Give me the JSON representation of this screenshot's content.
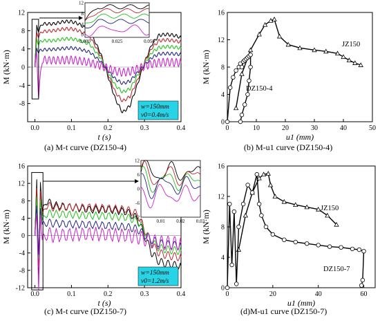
{
  "charts": {
    "a": {
      "caption": "(a) M-t curve (DZ150-4)",
      "xlabel": "t (s)",
      "ylabel": "M (kN·m)",
      "info_line1": "w=150mm",
      "info_line2": "v0=0.4m/s",
      "inset_xlim": [
        0,
        0.05
      ]
    },
    "b": {
      "caption": "(b) M-u1 curve (DZ150-4)",
      "xlabel": "u1 (mm)",
      "ylabel": "M (kN·m)",
      "label_jz": "JZ150",
      "label_dz": "DZ150-4"
    },
    "c": {
      "caption": "(c) M-t curve (DZ150-7)",
      "xlabel": "t (s)",
      "ylabel": "M (kN·m)",
      "info_line1": "w=150mm",
      "info_line2": "v0=1.2m/s",
      "inset_xlim": [
        0,
        0.03
      ]
    },
    "d": {
      "caption": "(d)M-u1 curve (DZ150-7)",
      "xlabel": "u1 (mm)",
      "ylabel": "M (kN·m)",
      "label_jz": "JZ150",
      "label_dz": "DZ150-7"
    }
  },
  "colors": {
    "black": "#000000",
    "red": "#c0262f",
    "green": "#21c21a",
    "blue": "#22227e",
    "pink": "#c2467a",
    "magenta": "#cc22cc",
    "info_box": "#29d3e6"
  },
  "chart_data": [
    {
      "id": "a",
      "type": "line",
      "xlim": [
        -0.02,
        0.4
      ],
      "ylim": [
        -12,
        12
      ],
      "xticks": [
        0.0,
        0.1,
        0.2,
        0.3,
        0.4
      ],
      "xtick_labels": [
        "0.0",
        "0.1",
        "0.2",
        "0.3",
        "0.4"
      ],
      "yticks": [
        -12,
        -8,
        -4,
        0,
        4,
        8,
        12
      ],
      "ytick_labels": [
        "",
        "-8",
        "-4",
        "0",
        "4",
        "8",
        "12"
      ],
      "series": [
        {
          "color": "black",
          "x": [
            0,
            0.005,
            0.01,
            0.02,
            0.05,
            0.08,
            0.1,
            0.12,
            0.15,
            0.18,
            0.2,
            0.22,
            0.24,
            0.26,
            0.28,
            0.3,
            0.32,
            0.34,
            0.36,
            0.38,
            0.4
          ],
          "y": [
            0,
            9,
            8,
            9.5,
            9.5,
            10,
            10,
            9.5,
            8,
            3,
            -2,
            -7,
            -10,
            -8.5,
            -4,
            1,
            5,
            7,
            7.2,
            7,
            6.5
          ]
        },
        {
          "color": "red",
          "x": [
            0,
            0.005,
            0.01,
            0.02,
            0.05,
            0.08,
            0.1,
            0.12,
            0.15,
            0.18,
            0.2,
            0.22,
            0.24,
            0.26,
            0.28,
            0.3,
            0.32,
            0.34,
            0.36,
            0.38,
            0.4
          ],
          "y": [
            0,
            7.5,
            6.8,
            7.8,
            8,
            8.4,
            8.4,
            8,
            6.8,
            2.5,
            -1.5,
            -5.5,
            -7.5,
            -6.5,
            -3,
            1,
            4.2,
            5.8,
            6,
            5.8,
            5.5
          ]
        },
        {
          "color": "green",
          "x": [
            0,
            0.005,
            0.01,
            0.02,
            0.05,
            0.08,
            0.1,
            0.12,
            0.15,
            0.18,
            0.2,
            0.22,
            0.24,
            0.26,
            0.28,
            0.3,
            0.32,
            0.34,
            0.36,
            0.38,
            0.4
          ],
          "y": [
            0,
            6,
            5.2,
            5.8,
            5.8,
            6.2,
            6.2,
            5.9,
            5,
            2,
            -1.2,
            -4,
            -5.5,
            -4.8,
            -2,
            0.8,
            3.2,
            4.3,
            4.5,
            4.4,
            4.2
          ]
        },
        {
          "color": "blue",
          "x": [
            0,
            0.005,
            0.01,
            0.02,
            0.05,
            0.08,
            0.1,
            0.12,
            0.15,
            0.18,
            0.2,
            0.22,
            0.24,
            0.26,
            0.28,
            0.3,
            0.32,
            0.34,
            0.36,
            0.38,
            0.4
          ],
          "y": [
            0,
            4,
            3.4,
            3.8,
            3.9,
            4.1,
            4.2,
            4,
            3.3,
            1.2,
            -0.8,
            -2.6,
            -3.6,
            -3.1,
            -1.3,
            0.5,
            2.1,
            2.9,
            3,
            2.9,
            2.8
          ]
        },
        {
          "color": "magenta",
          "x": [
            0,
            0.005,
            0.01,
            0.02,
            0.05,
            0.08,
            0.1,
            0.12,
            0.15,
            0.18,
            0.2,
            0.22,
            0.24,
            0.26,
            0.28,
            0.3,
            0.32,
            0.34,
            0.36,
            0.38,
            0.4
          ],
          "y": [
            0,
            2.5,
            -6,
            1.6,
            1.5,
            1.5,
            1.6,
            1.4,
            1,
            0.3,
            -0.3,
            -0.9,
            -1.2,
            -1,
            -0.4,
            0.2,
            0.7,
            1,
            1.1,
            1,
            1
          ]
        }
      ]
    },
    {
      "id": "b",
      "type": "line",
      "xlim": [
        0,
        50
      ],
      "ylim": [
        0,
        16
      ],
      "xticks": [
        0,
        10,
        20,
        30,
        40,
        50
      ],
      "xtick_labels": [
        "0",
        "10",
        "20",
        "30",
        "40",
        "50"
      ],
      "yticks": [
        0,
        4,
        8,
        12,
        16
      ],
      "ytick_labels": [
        "0",
        "4",
        "8",
        "12",
        "16"
      ],
      "series": [
        {
          "name": "JZ150",
          "marker": "triangle",
          "x": [
            3,
            5,
            8,
            11,
            13,
            15,
            16.2,
            18,
            21,
            25,
            30,
            34,
            38,
            40,
            42,
            44,
            46
          ],
          "y": [
            2,
            7,
            10.5,
            12.8,
            14.2,
            14.8,
            15,
            12.5,
            11.3,
            10.8,
            10.5,
            10.3,
            10,
            9.5,
            9,
            8.6,
            8.3
          ]
        },
        {
          "name": "DZ150-4",
          "marker": "circle",
          "x": [
            0,
            1,
            2,
            3,
            4,
            4.5,
            5,
            5.5,
            6,
            6.5,
            7,
            7.5,
            8,
            8,
            7.5,
            7,
            6,
            5,
            4.5
          ],
          "y": [
            0,
            5,
            6.5,
            7.5,
            8,
            8.5,
            8,
            8.8,
            9,
            9.2,
            9.4,
            9.6,
            9.8,
            8,
            6,
            4,
            2.5,
            1,
            0
          ]
        }
      ]
    },
    {
      "id": "c",
      "type": "line",
      "xlim": [
        -0.02,
        0.4
      ],
      "ylim": [
        -12,
        16
      ],
      "xticks": [
        0.0,
        0.1,
        0.2,
        0.3,
        0.4
      ],
      "xtick_labels": [
        "0.0",
        "0.1",
        "0.2",
        "0.3",
        "0.4"
      ],
      "yticks": [
        -12,
        -8,
        -4,
        0,
        4,
        8,
        12,
        16
      ],
      "ytick_labels": [
        "-12",
        "-8",
        "-4",
        "0",
        "4",
        "8",
        "12",
        "16"
      ],
      "series": [
        {
          "color": "black",
          "x": [
            0,
            0.005,
            0.01,
            0.015,
            0.02,
            0.03,
            0.05,
            0.1,
            0.15,
            0.2,
            0.25,
            0.28,
            0.3,
            0.32,
            0.34,
            0.36,
            0.38,
            0.4
          ],
          "y": [
            0,
            12,
            -9,
            13,
            5,
            8,
            7,
            6.5,
            6,
            6,
            5.5,
            4,
            0,
            -4,
            -6,
            -6.5,
            -6.8,
            -7
          ]
        },
        {
          "color": "red",
          "x": [
            0,
            0.005,
            0.01,
            0.015,
            0.02,
            0.03,
            0.05,
            0.1,
            0.15,
            0.2,
            0.25,
            0.28,
            0.3,
            0.32,
            0.34,
            0.36,
            0.38,
            0.4
          ],
          "y": [
            0,
            10,
            -7,
            11,
            4,
            7,
            6.5,
            6.5,
            6.5,
            6.3,
            6,
            5,
            1.5,
            -2,
            -4,
            -4.5,
            -4.8,
            -5
          ]
        },
        {
          "color": "green",
          "x": [
            0,
            0.005,
            0.01,
            0.015,
            0.02,
            0.03,
            0.05,
            0.1,
            0.15,
            0.2,
            0.25,
            0.28,
            0.3,
            0.32,
            0.34,
            0.36,
            0.38,
            0.4
          ],
          "y": [
            0,
            8,
            -5,
            9,
            3,
            5,
            5,
            4.8,
            4.6,
            4.5,
            4.2,
            3.5,
            1,
            -1.5,
            -2.8,
            -3.2,
            -3.4,
            -3.5
          ]
        },
        {
          "color": "blue",
          "x": [
            0,
            0.005,
            0.01,
            0.015,
            0.02,
            0.03,
            0.05,
            0.1,
            0.15,
            0.2,
            0.25,
            0.28,
            0.3,
            0.32,
            0.34,
            0.36,
            0.38,
            0.4
          ],
          "y": [
            0,
            6,
            -4,
            7,
            2,
            3,
            2.8,
            2.6,
            2.5,
            2.3,
            2,
            1.5,
            0.2,
            -1,
            -1.8,
            -2,
            -2.2,
            -2.3
          ]
        },
        {
          "color": "magenta",
          "x": [
            0,
            0.005,
            0.01,
            0.015,
            0.02,
            0.03,
            0.05,
            0.1,
            0.15,
            0.2,
            0.25,
            0.28,
            0.3,
            0.32,
            0.34,
            0.36,
            0.38,
            0.4
          ],
          "y": [
            0,
            3,
            -12,
            6,
            -2,
            0.5,
            0,
            0.2,
            0.4,
            0.2,
            0,
            -0.3,
            -0.8,
            -1.3,
            -1.6,
            -1.7,
            -1.8,
            -1.8
          ]
        }
      ]
    },
    {
      "id": "d",
      "type": "line",
      "xlim": [
        0,
        65
      ],
      "ylim": [
        0,
        16
      ],
      "xticks": [
        0,
        20,
        40,
        60
      ],
      "xtick_labels": [
        "0",
        "20",
        "40",
        "60"
      ],
      "yticks": [
        0,
        4,
        8,
        12,
        16
      ],
      "ytick_labels": [
        "0",
        "4",
        "8",
        "12",
        "16"
      ],
      "series": [
        {
          "name": "JZ150",
          "marker": "triangle",
          "x": [
            5,
            8,
            11,
            14,
            16,
            18,
            19,
            21,
            25,
            30,
            35,
            40,
            44,
            48
          ],
          "y": [
            5,
            9.5,
            12.5,
            14.4,
            14.9,
            15,
            13.5,
            12,
            11.3,
            10.9,
            10.6,
            10.3,
            9.5,
            8.3
          ]
        },
        {
          "name": "DZ150-7",
          "marker": "circle",
          "x": [
            0,
            1,
            2,
            3,
            4,
            5,
            7,
            9,
            11,
            13,
            14,
            15,
            17,
            20,
            25,
            30,
            35,
            40,
            45,
            50,
            55,
            58,
            60,
            59.5,
            59
          ],
          "y": [
            0,
            11,
            3,
            10,
            0.5,
            8,
            11,
            13.5,
            12.5,
            14.9,
            11,
            9.5,
            8,
            7,
            6.3,
            6,
            5.8,
            5.6,
            5.4,
            5.3,
            5.1,
            5,
            4.8,
            1,
            0.3
          ]
        }
      ]
    }
  ]
}
